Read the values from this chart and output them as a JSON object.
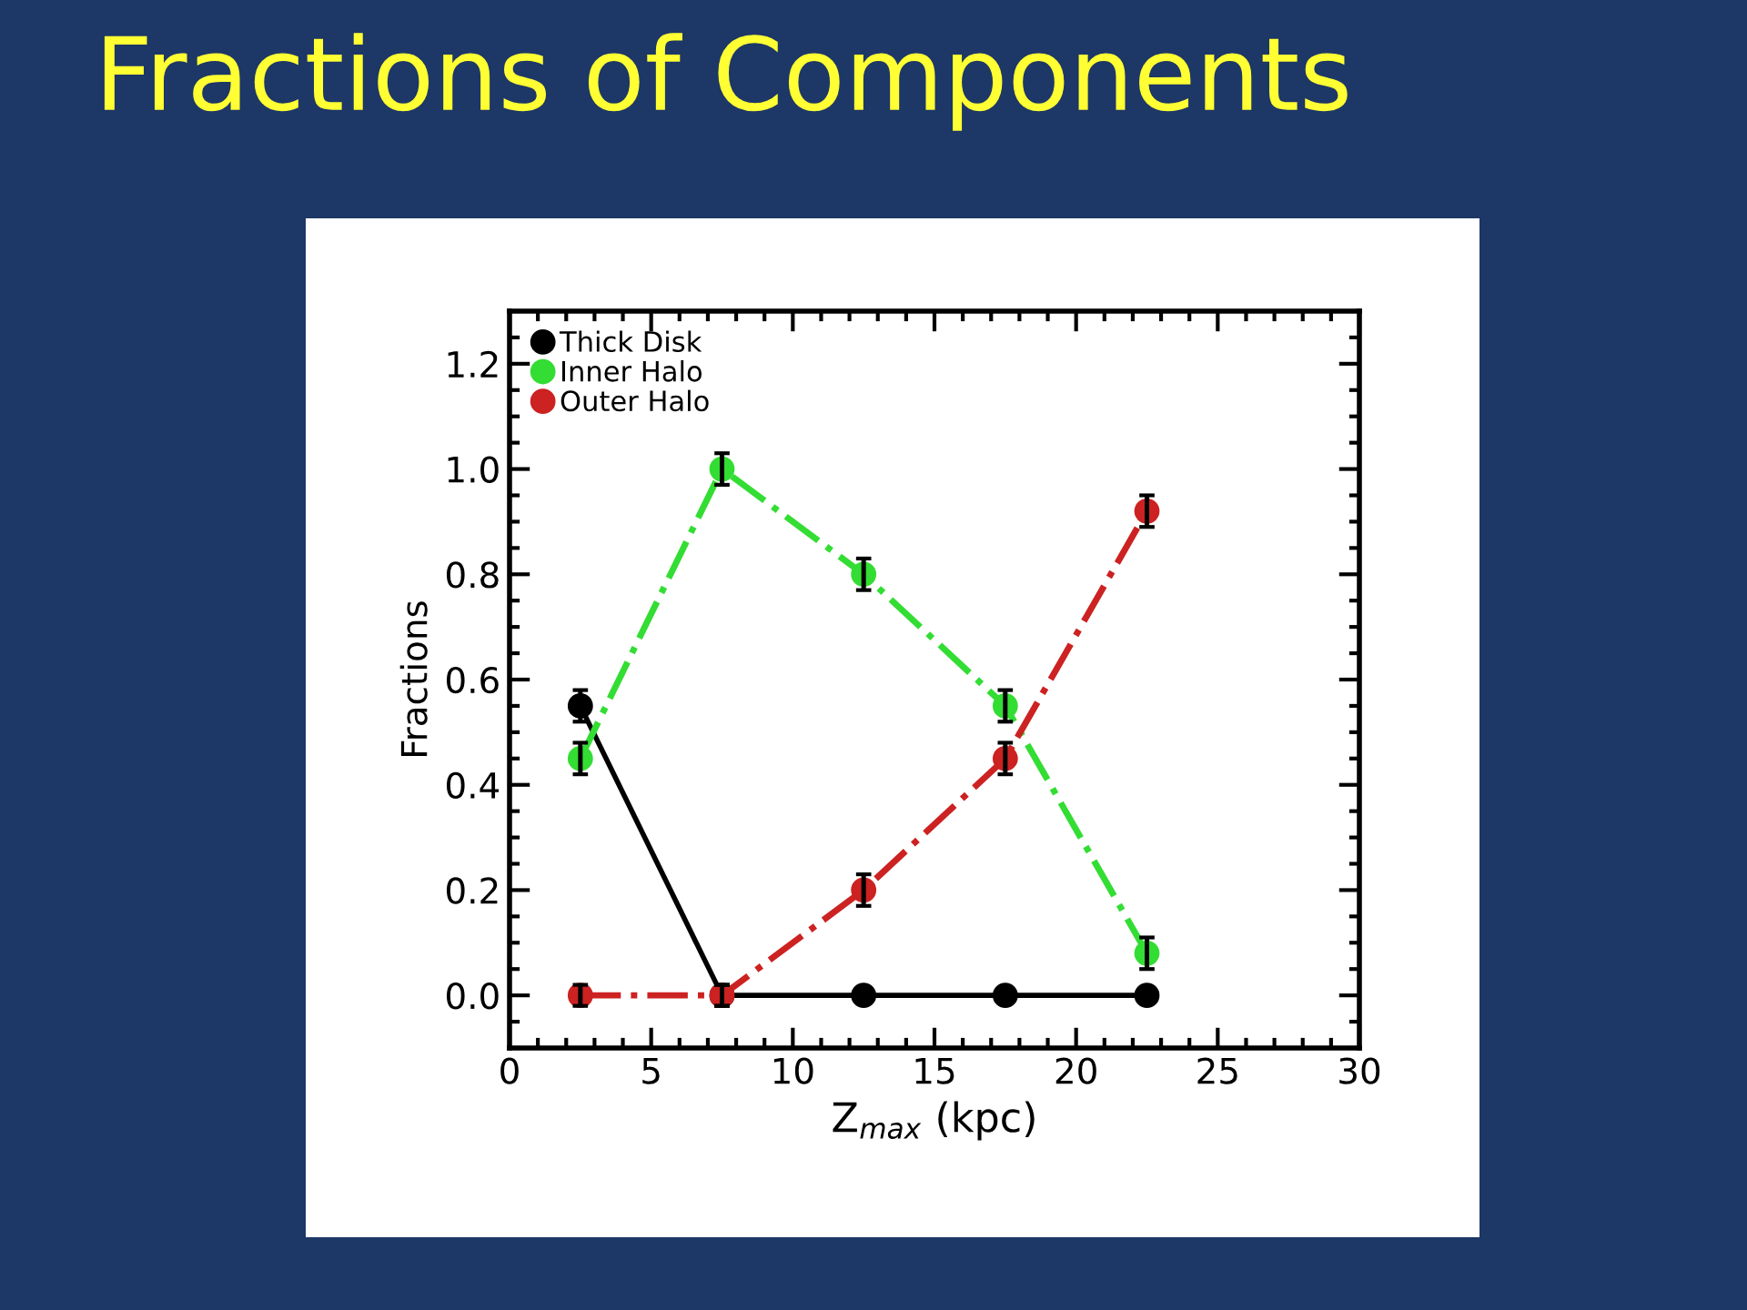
{
  "chart_data": {
    "type": "line",
    "title": "Fractions of Components",
    "xlabel": "Z$_{max}$ (kpc)",
    "ylabel": "Fractions",
    "x": [
      2.5,
      7.5,
      12.5,
      17.5,
      22.5
    ],
    "series": [
      {
        "name": "Thick Disk",
        "color": "#000000",
        "values": [
          0.55,
          0,
          0,
          0,
          0
        ],
        "errors": [
          0.03,
          0.02,
          null,
          null,
          null
        ],
        "line_style": "solid"
      },
      {
        "name": "Inner Halo",
        "color": "#33dd33",
        "values": [
          0.45,
          1.0,
          0.8,
          0.55,
          0.08
        ],
        "errors": [
          0.03,
          0.03,
          0.03,
          0.03,
          0.03
        ],
        "line_style": "dashdot"
      },
      {
        "name": "Outer Halo",
        "color": "#cc2222",
        "values": [
          0,
          0,
          0.2,
          0.45,
          0.92
        ],
        "errors": [
          0.02,
          0.02,
          0.03,
          0.03,
          0.03
        ],
        "line_style": "dashdot"
      }
    ],
    "xlim": [
      0,
      30
    ],
    "xticks": [
      0,
      5,
      10,
      15,
      20,
      25,
      30
    ],
    "ylim": [
      -0.1,
      1.3
    ],
    "yticks": [
      {
        "value": 0,
        "label": "0.0"
      },
      {
        "value": 0.2,
        "label": "0.2"
      },
      {
        "value": 0.4,
        "label": "0.4"
      },
      {
        "value": 0.6,
        "label": "0.6"
      },
      {
        "value": 0.8,
        "label": "0.8"
      },
      {
        "value": 1.0,
        "label": "1.0"
      },
      {
        "value": 1.2,
        "label": "1.2"
      }
    ],
    "marker": "circle",
    "grid": false,
    "legend": "top left"
  }
}
